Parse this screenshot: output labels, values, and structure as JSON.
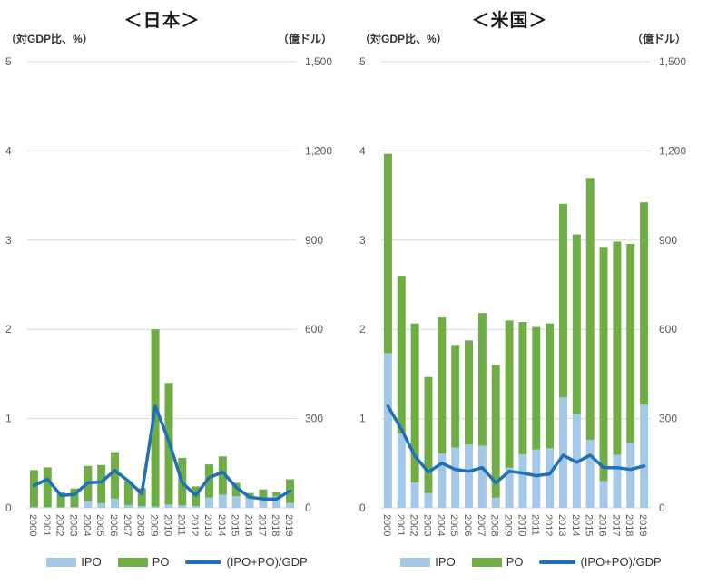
{
  "colors": {
    "ipo": "#A5C8E8",
    "po": "#70AD47",
    "line": "#1F70B8",
    "grid": "#D9D9D9",
    "tick_text": "#595959",
    "year_text": "#595959",
    "caption_text": "#333333",
    "title_text": "#1a1a1a"
  },
  "chart_data": [
    {
      "type": "bar+line",
      "title": "＜日本＞",
      "left_axis": {
        "label": "（対GDP比、%）",
        "min": 0,
        "max": 5,
        "ticks": [
          "5",
          "4",
          "3",
          "2",
          "1",
          "0"
        ]
      },
      "right_axis": {
        "label": "（億ドル）",
        "min": 0,
        "max": 1500,
        "ticks": [
          "1,500",
          "1,200",
          "900",
          "600",
          "300",
          "0"
        ]
      },
      "categories": [
        "2000",
        "2001",
        "2002",
        "2003",
        "2004",
        "2005",
        "2006",
        "2007",
        "2008",
        "2009",
        "2010",
        "2011",
        "2012",
        "2013",
        "2014",
        "2015",
        "2016",
        "2017",
        "2018",
        "2019"
      ],
      "series": [
        {
          "name": "IPO",
          "type": "bar",
          "axis": "right",
          "values": [
            3,
            3,
            2,
            3,
            23,
            15,
            31,
            9,
            6,
            4,
            11,
            8,
            6,
            35,
            44,
            39,
            32,
            29,
            39,
            16
          ]
        },
        {
          "name": "PO",
          "type": "bar",
          "axis": "right",
          "values": [
            124,
            133,
            50,
            62,
            118,
            129,
            156,
            80,
            60,
            596,
            409,
            160,
            66,
            111,
            129,
            45,
            18,
            33,
            14,
            80
          ]
        },
        {
          "name": "(IPO+PO)/GDP",
          "type": "line",
          "axis": "left",
          "values": [
            0.25,
            0.32,
            0.14,
            0.15,
            0.28,
            0.29,
            0.42,
            0.3,
            0.16,
            1.14,
            0.75,
            0.28,
            0.14,
            0.34,
            0.4,
            0.23,
            0.12,
            0.1,
            0.1,
            0.19
          ]
        }
      ],
      "legend": [
        "IPO",
        "PO",
        "(IPO+PO)/GDP"
      ],
      "grid": "horizontal",
      "legend_position": "bottom"
    },
    {
      "type": "bar+line",
      "title": "＜米国＞",
      "left_axis": {
        "label": "（対GDP比、%）",
        "min": 0,
        "max": 5,
        "ticks": [
          "5",
          "4",
          "3",
          "2",
          "1",
          "0"
        ]
      },
      "right_axis": {
        "label": "（億ドル）",
        "min": 0,
        "max": 1500,
        "ticks": [
          "1,500",
          "1,200",
          "900",
          "600",
          "300",
          "0"
        ]
      },
      "categories": [
        "2000",
        "2001",
        "2002",
        "2003",
        "2004",
        "2005",
        "2006",
        "2007",
        "2008",
        "2009",
        "2010",
        "2011",
        "2012",
        "2013",
        "2014",
        "2015",
        "2016",
        "2017",
        "2018",
        "2019"
      ],
      "series": [
        {
          "name": "IPO",
          "type": "bar",
          "axis": "right",
          "values": [
            520,
            250,
            85,
            50,
            182,
            203,
            213,
            209,
            34,
            135,
            180,
            196,
            200,
            371,
            316,
            229,
            90,
            178,
            219,
            347
          ]
        },
        {
          "name": "PO",
          "type": "bar",
          "axis": "right",
          "values": [
            670,
            530,
            535,
            390,
            458,
            345,
            350,
            446,
            446,
            495,
            445,
            412,
            420,
            651,
            603,
            880,
            787,
            717,
            668,
            680
          ]
        },
        {
          "name": "(IPO+PO)/GDP",
          "type": "line",
          "axis": "left",
          "values": [
            1.14,
            0.88,
            0.58,
            0.4,
            0.5,
            0.43,
            0.41,
            0.45,
            0.28,
            0.41,
            0.39,
            0.36,
            0.38,
            0.59,
            0.51,
            0.59,
            0.45,
            0.45,
            0.43,
            0.47
          ]
        }
      ],
      "legend": [
        "IPO",
        "PO",
        "(IPO+PO)/GDP"
      ],
      "grid": "horizontal",
      "legend_position": "bottom"
    }
  ]
}
